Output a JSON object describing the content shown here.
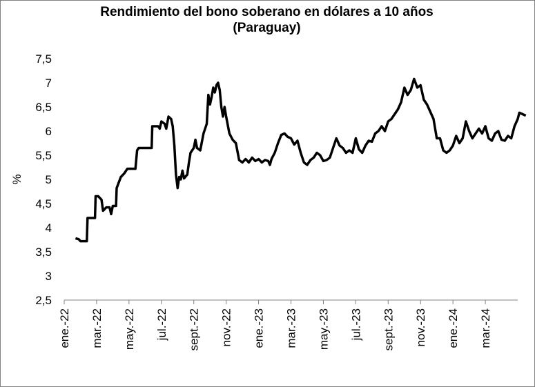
{
  "chart_data": {
    "type": "line",
    "title": "Rendimiento del bono soberano en dólares a 10 años",
    "subtitle": "(Paraguay)",
    "xlabel": "",
    "ylabel": "%",
    "ylim": [
      2.5,
      7.5
    ],
    "yticks": [
      "2,5",
      "3",
      "3,5",
      "4",
      "4,5",
      "5",
      "5,5",
      "6",
      "6,5",
      "7",
      "7,5"
    ],
    "xticks": [
      "ene.-22",
      "mar.-22",
      "may.-22",
      "jul.-22",
      "sept.-22",
      "nov.-22",
      "ene.-23",
      "mar.-23",
      "may.-23",
      "jul.-23",
      "sept.-23",
      "nov.-23",
      "ene.-24",
      "mar.-24"
    ],
    "grid": false,
    "line_color": "#000000",
    "series": [
      {
        "name": "",
        "points": [
          [
            0.35,
            3.78
          ],
          [
            0.45,
            3.76
          ],
          [
            0.5,
            3.72
          ],
          [
            0.7,
            3.72
          ],
          [
            0.72,
            4.2
          ],
          [
            0.95,
            4.2
          ],
          [
            0.97,
            4.65
          ],
          [
            1.05,
            4.65
          ],
          [
            1.15,
            4.58
          ],
          [
            1.2,
            4.35
          ],
          [
            1.3,
            4.42
          ],
          [
            1.4,
            4.42
          ],
          [
            1.45,
            4.28
          ],
          [
            1.5,
            4.45
          ],
          [
            1.6,
            4.45
          ],
          [
            1.62,
            4.82
          ],
          [
            1.75,
            5.05
          ],
          [
            1.85,
            5.12
          ],
          [
            1.95,
            5.22
          ],
          [
            2.2,
            5.22
          ],
          [
            2.25,
            5.6
          ],
          [
            2.3,
            5.65
          ],
          [
            2.7,
            5.65
          ],
          [
            2.72,
            6.1
          ],
          [
            2.9,
            6.1
          ],
          [
            2.95,
            6.05
          ],
          [
            3.0,
            6.2
          ],
          [
            3.1,
            6.15
          ],
          [
            3.15,
            6.05
          ],
          [
            3.22,
            6.3
          ],
          [
            3.3,
            6.25
          ],
          [
            3.35,
            6.1
          ],
          [
            3.4,
            5.7
          ],
          [
            3.45,
            5.1
          ],
          [
            3.5,
            4.82
          ],
          [
            3.55,
            5.05
          ],
          [
            3.6,
            5.0
          ],
          [
            3.65,
            5.18
          ],
          [
            3.7,
            5.02
          ],
          [
            3.8,
            5.1
          ],
          [
            3.85,
            5.35
          ],
          [
            3.9,
            5.55
          ],
          [
            4.0,
            5.65
          ],
          [
            4.05,
            5.82
          ],
          [
            4.1,
            5.65
          ],
          [
            4.2,
            5.6
          ],
          [
            4.3,
            5.95
          ],
          [
            4.4,
            6.15
          ],
          [
            4.45,
            6.75
          ],
          [
            4.5,
            6.55
          ],
          [
            4.55,
            6.7
          ],
          [
            4.6,
            6.9
          ],
          [
            4.65,
            6.8
          ],
          [
            4.7,
            6.95
          ],
          [
            4.75,
            7.0
          ],
          [
            4.8,
            6.85
          ],
          [
            4.85,
            6.5
          ],
          [
            4.9,
            6.3
          ],
          [
            4.95,
            6.5
          ],
          [
            5.0,
            6.3
          ],
          [
            5.1,
            5.95
          ],
          [
            5.2,
            5.82
          ],
          [
            5.3,
            5.75
          ],
          [
            5.4,
            5.4
          ],
          [
            5.5,
            5.35
          ],
          [
            5.6,
            5.42
          ],
          [
            5.7,
            5.35
          ],
          [
            5.8,
            5.45
          ],
          [
            5.9,
            5.38
          ],
          [
            6.0,
            5.42
          ],
          [
            6.1,
            5.35
          ],
          [
            6.2,
            5.4
          ],
          [
            6.3,
            5.38
          ],
          [
            6.35,
            5.3
          ],
          [
            6.4,
            5.42
          ],
          [
            6.5,
            5.55
          ],
          [
            6.6,
            5.75
          ],
          [
            6.7,
            5.92
          ],
          [
            6.8,
            5.95
          ],
          [
            6.9,
            5.88
          ],
          [
            7.0,
            5.85
          ],
          [
            7.1,
            5.72
          ],
          [
            7.2,
            5.8
          ],
          [
            7.3,
            5.55
          ],
          [
            7.4,
            5.35
          ],
          [
            7.5,
            5.3
          ],
          [
            7.6,
            5.4
          ],
          [
            7.7,
            5.45
          ],
          [
            7.8,
            5.55
          ],
          [
            7.9,
            5.5
          ],
          [
            8.0,
            5.38
          ],
          [
            8.1,
            5.4
          ],
          [
            8.2,
            5.45
          ],
          [
            8.3,
            5.65
          ],
          [
            8.4,
            5.85
          ],
          [
            8.5,
            5.7
          ],
          [
            8.6,
            5.65
          ],
          [
            8.7,
            5.55
          ],
          [
            8.8,
            5.6
          ],
          [
            8.9,
            5.55
          ],
          [
            9.0,
            5.85
          ],
          [
            9.1,
            5.62
          ],
          [
            9.2,
            5.55
          ],
          [
            9.3,
            5.7
          ],
          [
            9.4,
            5.8
          ],
          [
            9.5,
            5.78
          ],
          [
            9.6,
            5.95
          ],
          [
            9.7,
            6.0
          ],
          [
            9.8,
            6.1
          ],
          [
            9.9,
            6.0
          ],
          [
            10.0,
            6.2
          ],
          [
            10.1,
            6.25
          ],
          [
            10.2,
            6.35
          ],
          [
            10.3,
            6.45
          ],
          [
            10.4,
            6.6
          ],
          [
            10.5,
            6.9
          ],
          [
            10.6,
            6.75
          ],
          [
            10.7,
            6.85
          ],
          [
            10.8,
            7.08
          ],
          [
            10.9,
            6.9
          ],
          [
            11.0,
            6.95
          ],
          [
            11.1,
            6.65
          ],
          [
            11.2,
            6.55
          ],
          [
            11.3,
            6.4
          ],
          [
            11.4,
            6.25
          ],
          [
            11.5,
            5.85
          ],
          [
            11.6,
            5.85
          ],
          [
            11.7,
            5.6
          ],
          [
            11.8,
            5.55
          ],
          [
            11.9,
            5.6
          ],
          [
            12.0,
            5.7
          ],
          [
            12.1,
            5.9
          ],
          [
            12.2,
            5.75
          ],
          [
            12.3,
            5.85
          ],
          [
            12.4,
            6.2
          ],
          [
            12.5,
            6.0
          ],
          [
            12.6,
            5.85
          ],
          [
            12.7,
            5.95
          ],
          [
            12.8,
            6.05
          ],
          [
            12.9,
            5.95
          ],
          [
            13.0,
            6.1
          ],
          [
            13.1,
            5.85
          ],
          [
            13.2,
            5.8
          ],
          [
            13.3,
            5.95
          ],
          [
            13.4,
            6.0
          ],
          [
            13.5,
            5.82
          ],
          [
            13.6,
            5.8
          ],
          [
            13.7,
            5.9
          ],
          [
            13.8,
            5.85
          ],
          [
            13.9,
            6.1
          ],
          [
            14.0,
            6.25
          ],
          [
            14.05,
            6.38
          ],
          [
            14.15,
            6.35
          ],
          [
            14.25,
            6.32
          ]
        ]
      }
    ]
  }
}
